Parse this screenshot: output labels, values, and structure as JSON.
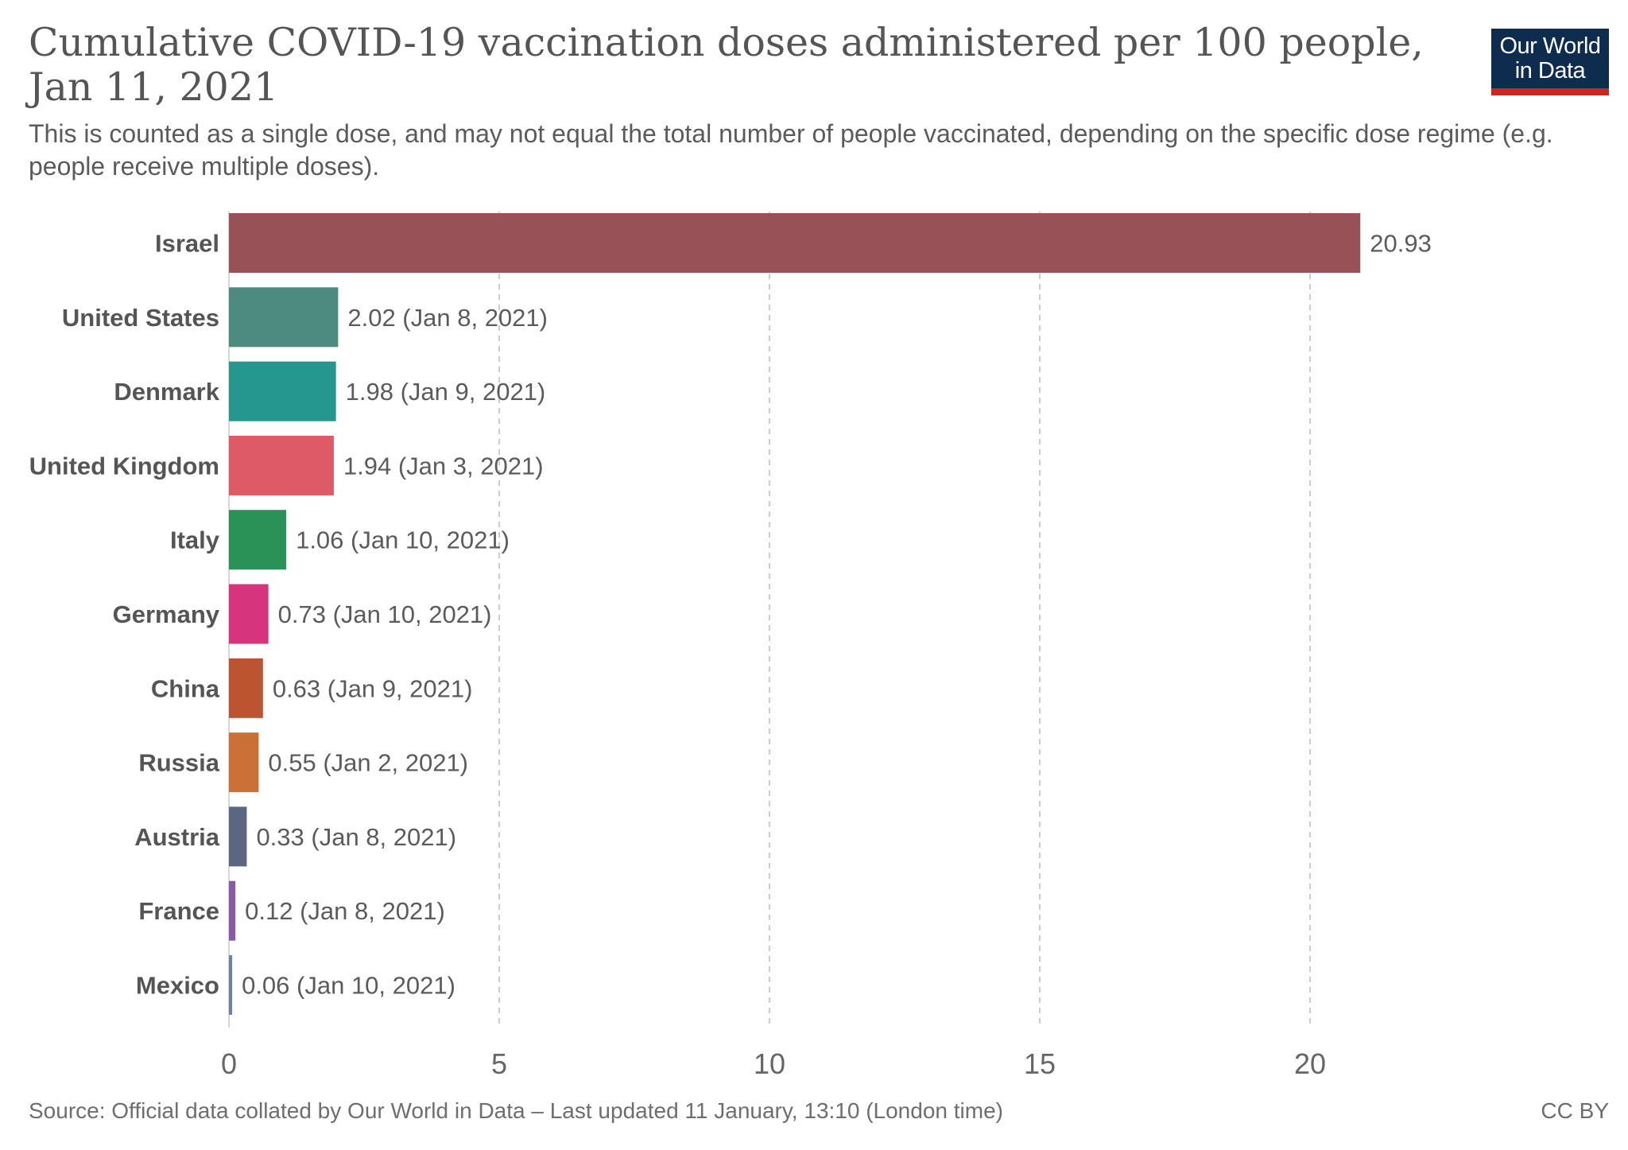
{
  "header": {
    "title": "Cumulative COVID-19 vaccination doses administered per 100 people, Jan 11, 2021",
    "subtitle": "This is counted as a single dose, and may not equal the total number of people vaccinated, depending on the specific dose regime (e.g. people receive multiple doses).",
    "logo_line1": "Our World",
    "logo_line2": "in Data"
  },
  "footer": {
    "source": "Source: Official data collated by Our World in Data – Last updated 11 January, 13:10 (London time)",
    "license": "CC BY"
  },
  "colors": {
    "logo_background": "#0e2c4d",
    "logo_accent": "#ce261e",
    "gridline": "#cccccc",
    "label_text": "#555555",
    "value_text": "#5b5b5b"
  },
  "chart_data": {
    "type": "bar",
    "orientation": "horizontal",
    "title": "Cumulative COVID-19 vaccination doses administered per 100 people, Jan 11, 2021",
    "xlabel": "",
    "ylabel": "",
    "xlim": [
      0,
      24
    ],
    "x_ticks": [
      0,
      5,
      10,
      15,
      20
    ],
    "grid": "vertical dashed",
    "legend": "none",
    "categories": [
      "Israel",
      "United States",
      "Denmark",
      "United Kingdom",
      "Italy",
      "Germany",
      "China",
      "Russia",
      "Austria",
      "France",
      "Mexico"
    ],
    "values": [
      20.93,
      2.02,
      1.98,
      1.94,
      1.06,
      0.73,
      0.63,
      0.55,
      0.33,
      0.12,
      0.06
    ],
    "value_labels": [
      "20.93",
      "2.02 (Jan 8, 2021)",
      "1.98 (Jan 9, 2021)",
      "1.94 (Jan 3, 2021)",
      "1.06 (Jan 10, 2021)",
      "0.73 (Jan 10, 2021)",
      "0.63 (Jan 9, 2021)",
      "0.55 (Jan 2, 2021)",
      "0.33 (Jan 8, 2021)",
      "0.12 (Jan 8, 2021)",
      "0.06 (Jan 10, 2021)"
    ],
    "colors": [
      "#985157",
      "#4d8a80",
      "#26978f",
      "#df5a67",
      "#2a9257",
      "#d7347e",
      "#bc5432",
      "#cb7137",
      "#5b6780",
      "#8a59a6",
      "#6d82aa"
    ]
  }
}
